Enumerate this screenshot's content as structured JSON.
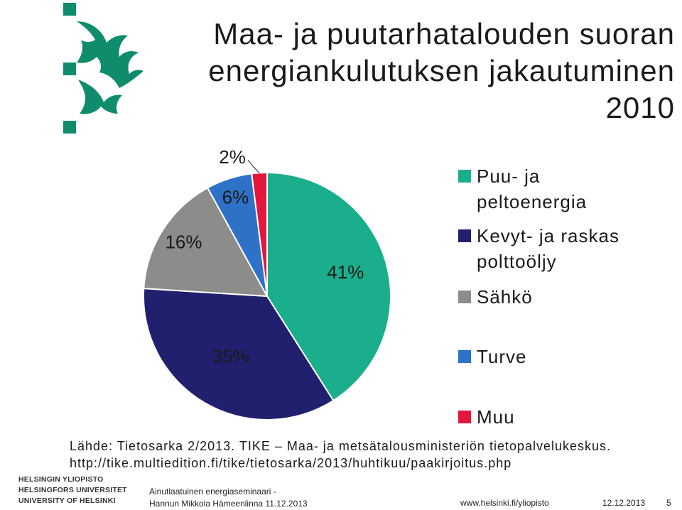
{
  "title_lines": [
    "Maa- ja puutarhatalouden suoran",
    "energiankulutuksen jakautuminen",
    "2010"
  ],
  "chart_data": {
    "type": "pie",
    "title": "Maa- ja puutarhatalouden suoran energiankulutuksen jakautuminen 2010",
    "slices": [
      {
        "name": "Puu- ja\npeltoenergia",
        "value": 41,
        "label": "41%",
        "color": "#1aae8c"
      },
      {
        "name": "Kevyt- ja raskas\npolttoöljy",
        "value": 35,
        "label": "35%",
        "color": "#21206e"
      },
      {
        "name": "Sähkö",
        "value": 16,
        "label": "16%",
        "color": "#8c8c8a"
      },
      {
        "name": "Turve",
        "value": 6,
        "label": "6%",
        "color": "#2e72c8"
      },
      {
        "name": "Muu",
        "value": 2,
        "label": "2%",
        "color": "#e3173e"
      }
    ],
    "legend_position": "right"
  },
  "source_text": "Lähde: Tietosarka 2/2013. TIKE – Maa- ja metsätalousministeriön tietopalvelukeskus. http://tike.multiedition.fi/tike/tietosarka/2013/huhtikuu/paakirjoitus.php",
  "logo": {
    "color": "#0f8c6c",
    "names": [
      "HELSINGIN YLIOPISTO",
      "HELSINGFORS UNIVERSITET",
      "UNIVERSITY OF HELSINKI"
    ]
  },
  "footer": {
    "event": "Ainutlaatuinen energiaseminaari -",
    "presenter": "Hannun Mikkola Hämeenlinna 11.12.2013",
    "url": "www.helsinki.fi/yliopisto",
    "date": "12.12.2013",
    "page": "5"
  }
}
